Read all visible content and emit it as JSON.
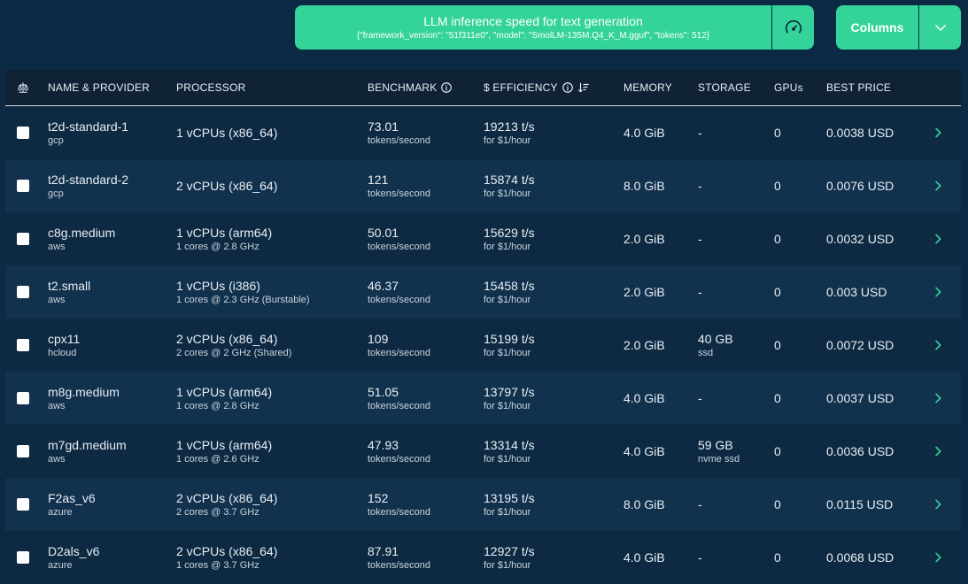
{
  "benchmark": {
    "title": "LLM inference speed for text generation",
    "params": "{\"framework_version\": \"51f311e0\", \"model\": \"SmolLM-135M.Q4_K_M.gguf\", \"tokens\": 512}",
    "icon": "gauge-icon"
  },
  "columns_button": {
    "label": "Columns",
    "icon": "chevron-down-icon"
  },
  "headers": {
    "compare_icon": "scale-icon",
    "name": "NAME & PROVIDER",
    "processor": "PROCESSOR",
    "benchmark": "BENCHMARK",
    "efficiency": "$ EFFICIENCY",
    "memory": "MEMORY",
    "storage": "STORAGE",
    "gpus": "GPUs",
    "best_price": "BEST PRICE"
  },
  "rows": [
    {
      "name": "t2d-standard-1",
      "provider": "gcp",
      "cpu": "1 vCPUs (x86_64)",
      "cores": "",
      "bench": "73.01",
      "bench_unit": "tokens/second",
      "eff": "19213 t/s",
      "eff_unit": "for $1/hour",
      "memory": "4.0 GiB",
      "storage": "-",
      "storage_type": "",
      "gpus": "0",
      "price": "0.0038 USD"
    },
    {
      "name": "t2d-standard-2",
      "provider": "gcp",
      "cpu": "2 vCPUs (x86_64)",
      "cores": "",
      "bench": "121",
      "bench_unit": "tokens/second",
      "eff": "15874 t/s",
      "eff_unit": "for $1/hour",
      "memory": "8.0 GiB",
      "storage": "-",
      "storage_type": "",
      "gpus": "0",
      "price": "0.0076 USD"
    },
    {
      "name": "c8g.medium",
      "provider": "aws",
      "cpu": "1 vCPUs (arm64)",
      "cores": "1 cores @ 2.8 GHz",
      "bench": "50.01",
      "bench_unit": "tokens/second",
      "eff": "15629 t/s",
      "eff_unit": "for $1/hour",
      "memory": "2.0 GiB",
      "storage": "-",
      "storage_type": "",
      "gpus": "0",
      "price": "0.0032 USD"
    },
    {
      "name": "t2.small",
      "provider": "aws",
      "cpu": "1 vCPUs (i386)",
      "cores": "1 cores @ 2.3 GHz (Burstable)",
      "bench": "46.37",
      "bench_unit": "tokens/second",
      "eff": "15458 t/s",
      "eff_unit": "for $1/hour",
      "memory": "2.0 GiB",
      "storage": "-",
      "storage_type": "",
      "gpus": "0",
      "price": "0.003 USD"
    },
    {
      "name": "cpx11",
      "provider": "hcloud",
      "cpu": "2 vCPUs (x86_64)",
      "cores": "2 cores @ 2 GHz (Shared)",
      "bench": "109",
      "bench_unit": "tokens/second",
      "eff": "15199 t/s",
      "eff_unit": "for $1/hour",
      "memory": "2.0 GiB",
      "storage": "40 GB",
      "storage_type": "ssd",
      "gpus": "0",
      "price": "0.0072 USD"
    },
    {
      "name": "m8g.medium",
      "provider": "aws",
      "cpu": "1 vCPUs (arm64)",
      "cores": "1 cores @ 2.8 GHz",
      "bench": "51.05",
      "bench_unit": "tokens/second",
      "eff": "13797 t/s",
      "eff_unit": "for $1/hour",
      "memory": "4.0 GiB",
      "storage": "-",
      "storage_type": "",
      "gpus": "0",
      "price": "0.0037 USD"
    },
    {
      "name": "m7gd.medium",
      "provider": "aws",
      "cpu": "1 vCPUs (arm64)",
      "cores": "1 cores @ 2.6 GHz",
      "bench": "47.93",
      "bench_unit": "tokens/second",
      "eff": "13314 t/s",
      "eff_unit": "for $1/hour",
      "memory": "4.0 GiB",
      "storage": "59 GB",
      "storage_type": "nvme ssd",
      "gpus": "0",
      "price": "0.0036 USD"
    },
    {
      "name": "F2as_v6",
      "provider": "azure",
      "cpu": "2 vCPUs (x86_64)",
      "cores": "2 cores @ 3.7 GHz",
      "bench": "152",
      "bench_unit": "tokens/second",
      "eff": "13195 t/s",
      "eff_unit": "for $1/hour",
      "memory": "8.0 GiB",
      "storage": "-",
      "storage_type": "",
      "gpus": "0",
      "price": "0.0115 USD"
    },
    {
      "name": "D2als_v6",
      "provider": "azure",
      "cpu": "2 vCPUs (x86_64)",
      "cores": "1 cores @ 3.7 GHz",
      "bench": "87.91",
      "bench_unit": "tokens/second",
      "eff": "12927 t/s",
      "eff_unit": "for $1/hour",
      "memory": "4.0 GiB",
      "storage": "-",
      "storage_type": "",
      "gpus": "0",
      "price": "0.0068 USD"
    }
  ],
  "colors": {
    "background": "#0c2a43",
    "accent": "#34d399",
    "row_odd": "#11314d",
    "row_even": "#0d2a42",
    "header": "#0f2236"
  }
}
